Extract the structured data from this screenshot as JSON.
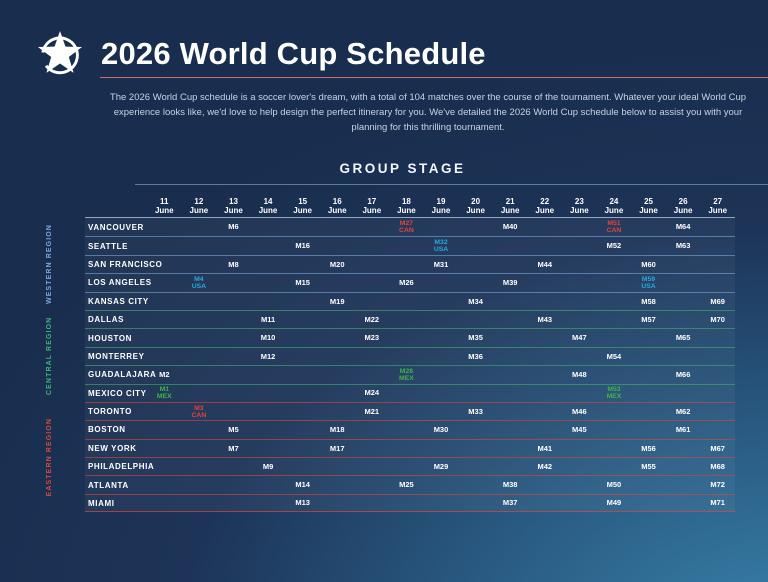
{
  "header": {
    "logo": "star-soccer-ball-logo",
    "title": "2026 World Cup Schedule",
    "accent_line_color": "#cf6d68",
    "description": "The 2026 World Cup schedule is a soccer lover's dream, with a total of 104 matches over the course of the tournament. Whatever your ideal World Cup experience looks like, we'd love to help design the perfect itinerary for you. We've detailed the 2026 World Cup schedule below to assist you with your planning for this thrilling tournament."
  },
  "section": {
    "title": "GROUP STAGE"
  },
  "table": {
    "columns": [
      {
        "day": "11",
        "month": "June"
      },
      {
        "day": "12",
        "month": "June"
      },
      {
        "day": "13",
        "month": "June"
      },
      {
        "day": "14",
        "month": "June"
      },
      {
        "day": "15",
        "month": "June"
      },
      {
        "day": "16",
        "month": "June"
      },
      {
        "day": "17",
        "month": "June"
      },
      {
        "day": "18",
        "month": "June"
      },
      {
        "day": "19",
        "month": "June"
      },
      {
        "day": "20",
        "month": "June"
      },
      {
        "day": "21",
        "month": "June"
      },
      {
        "day": "22",
        "month": "June"
      },
      {
        "day": "23",
        "month": "June"
      },
      {
        "day": "24",
        "month": "June"
      },
      {
        "day": "25",
        "month": "June"
      },
      {
        "day": "26",
        "month": "June"
      },
      {
        "day": "27",
        "month": "June"
      }
    ],
    "regions": [
      {
        "key": "western",
        "name": "WESTERN REGION",
        "color": "#7BA8DA",
        "row_count": 5
      },
      {
        "key": "central",
        "name": "CENTRAL REGION",
        "color": "#3FB077",
        "row_count": 5
      },
      {
        "key": "eastern",
        "name": "EASTERN REGION",
        "color": "#D8483B",
        "row_count": 6
      }
    ],
    "team_colors": {
      "USA": "#2AA9E0",
      "MEX": "#3CB54A",
      "CAN": "#E8413C"
    },
    "rows": [
      {
        "city": "VANCOUVER",
        "region": "western",
        "matches": [
          {
            "day": 13,
            "match": "M6"
          },
          {
            "day": 18,
            "match": "M27",
            "team": "CAN"
          },
          {
            "day": 21,
            "match": "M40"
          },
          {
            "day": 24,
            "match": "M51",
            "team": "CAN"
          },
          {
            "day": 26,
            "match": "M64"
          }
        ]
      },
      {
        "city": "SEATTLE",
        "region": "western",
        "matches": [
          {
            "day": 15,
            "match": "M16"
          },
          {
            "day": 19,
            "match": "M32",
            "team": "USA"
          },
          {
            "day": 24,
            "match": "M52"
          },
          {
            "day": 26,
            "match": "M63"
          }
        ]
      },
      {
        "city": "SAN FRANCISCO",
        "region": "western",
        "matches": [
          {
            "day": 13,
            "match": "M8"
          },
          {
            "day": 16,
            "match": "M20"
          },
          {
            "day": 19,
            "match": "M31"
          },
          {
            "day": 22,
            "match": "M44"
          },
          {
            "day": 25,
            "match": "M60"
          }
        ]
      },
      {
        "city": "LOS ANGELES",
        "region": "western",
        "matches": [
          {
            "day": 12,
            "match": "M4",
            "team": "USA"
          },
          {
            "day": 15,
            "match": "M15"
          },
          {
            "day": 18,
            "match": "M26"
          },
          {
            "day": 21,
            "match": "M39"
          },
          {
            "day": 25,
            "match": "M59",
            "team": "USA"
          }
        ]
      },
      {
        "city": "KANSAS CITY",
        "region": "western",
        "matches": [
          {
            "day": 16,
            "match": "M19"
          },
          {
            "day": 20,
            "match": "M34"
          },
          {
            "day": 25,
            "match": "M58"
          },
          {
            "day": 27,
            "match": "M69"
          }
        ]
      },
      {
        "city": "DALLAS",
        "region": "central",
        "matches": [
          {
            "day": 14,
            "match": "M11"
          },
          {
            "day": 17,
            "match": "M22"
          },
          {
            "day": 22,
            "match": "M43"
          },
          {
            "day": 25,
            "match": "M57"
          },
          {
            "day": 27,
            "match": "M70"
          }
        ]
      },
      {
        "city": "HOUSTON",
        "region": "central",
        "matches": [
          {
            "day": 14,
            "match": "M10"
          },
          {
            "day": 17,
            "match": "M23"
          },
          {
            "day": 20,
            "match": "M35"
          },
          {
            "day": 23,
            "match": "M47"
          },
          {
            "day": 26,
            "match": "M65"
          }
        ]
      },
      {
        "city": "MONTERREY",
        "region": "central",
        "matches": [
          {
            "day": 14,
            "match": "M12"
          },
          {
            "day": 20,
            "match": "M36"
          },
          {
            "day": 24,
            "match": "M54"
          }
        ]
      },
      {
        "city": "GUADALAJARA",
        "region": "central",
        "matches": [
          {
            "day": 11,
            "match": "M2"
          },
          {
            "day": 18,
            "match": "M28",
            "team": "MEX"
          },
          {
            "day": 23,
            "match": "M48"
          },
          {
            "day": 26,
            "match": "M66"
          }
        ]
      },
      {
        "city": "MEXICO CITY",
        "region": "central",
        "matches": [
          {
            "day": 11,
            "match": "M1",
            "team": "MEX"
          },
          {
            "day": 17,
            "match": "M24"
          },
          {
            "day": 24,
            "match": "M53",
            "team": "MEX"
          }
        ]
      },
      {
        "city": "TORONTO",
        "region": "eastern",
        "matches": [
          {
            "day": 12,
            "match": "M3",
            "team": "CAN"
          },
          {
            "day": 17,
            "match": "M21"
          },
          {
            "day": 20,
            "match": "M33"
          },
          {
            "day": 23,
            "match": "M46"
          },
          {
            "day": 26,
            "match": "M62"
          }
        ]
      },
      {
        "city": "BOSTON",
        "region": "eastern",
        "matches": [
          {
            "day": 13,
            "match": "M5"
          },
          {
            "day": 16,
            "match": "M18"
          },
          {
            "day": 19,
            "match": "M30"
          },
          {
            "day": 23,
            "match": "M45"
          },
          {
            "day": 26,
            "match": "M61"
          }
        ]
      },
      {
        "city": "NEW YORK",
        "region": "eastern",
        "matches": [
          {
            "day": 13,
            "match": "M7"
          },
          {
            "day": 16,
            "match": "M17"
          },
          {
            "day": 22,
            "match": "M41"
          },
          {
            "day": 25,
            "match": "M56"
          },
          {
            "day": 27,
            "match": "M67"
          }
        ]
      },
      {
        "city": "PHILADELPHIA",
        "region": "eastern",
        "matches": [
          {
            "day": 14,
            "match": "M9"
          },
          {
            "day": 19,
            "match": "M29"
          },
          {
            "day": 22,
            "match": "M42"
          },
          {
            "day": 25,
            "match": "M55"
          },
          {
            "day": 27,
            "match": "M68"
          }
        ]
      },
      {
        "city": "ATLANTA",
        "region": "eastern",
        "matches": [
          {
            "day": 15,
            "match": "M14"
          },
          {
            "day": 18,
            "match": "M25"
          },
          {
            "day": 21,
            "match": "M38"
          },
          {
            "day": 24,
            "match": "M50"
          },
          {
            "day": 27,
            "match": "M72"
          }
        ]
      },
      {
        "city": "MIAMI",
        "region": "eastern",
        "matches": [
          {
            "day": 15,
            "match": "M13"
          },
          {
            "day": 21,
            "match": "M37"
          },
          {
            "day": 24,
            "match": "M49"
          },
          {
            "day": 27,
            "match": "M71"
          }
        ]
      }
    ]
  }
}
